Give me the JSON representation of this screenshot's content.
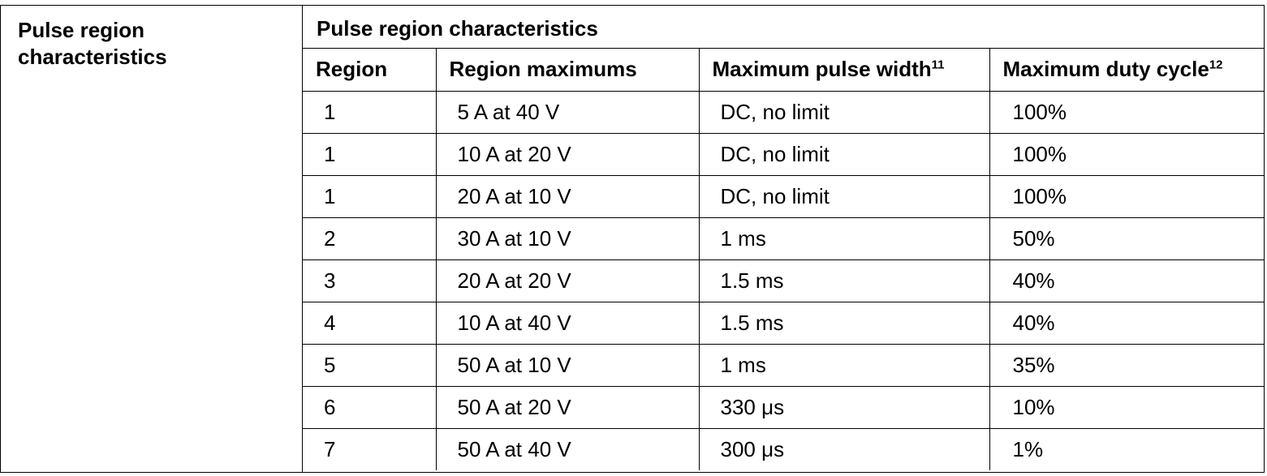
{
  "left_label": {
    "line1": "Pulse region",
    "line2": "characteristics"
  },
  "table_title": "Pulse region characteristics",
  "headers": {
    "region": "Region",
    "region_max": "Region maximums",
    "pulse_width": "Maximum pulse width",
    "pulse_width_note": "11",
    "duty_cycle": "Maximum duty cycle",
    "duty_cycle_note": "12"
  },
  "rows": [
    {
      "region": "1",
      "max": "5 A at 40 V",
      "width": "DC, no limit",
      "duty": "100%"
    },
    {
      "region": "1",
      "max": "10 A at 20 V",
      "width": "DC, no limit",
      "duty": "100%"
    },
    {
      "region": "1",
      "max": "20 A at 10 V",
      "width": "DC, no limit",
      "duty": "100%"
    },
    {
      "region": "2",
      "max": "30 A at 10 V",
      "width": "1 ms",
      "duty": "50%"
    },
    {
      "region": "3",
      "max": "20 A at 20 V",
      "width": "1.5 ms",
      "duty": "40%"
    },
    {
      "region": "4",
      "max": "10 A at 40 V",
      "width": "1.5 ms",
      "duty": "40%"
    },
    {
      "region": "5",
      "max": "50 A at 10 V",
      "width": "1 ms",
      "duty": "35%"
    },
    {
      "region": "6",
      "max": "50 A at 20 V",
      "width": "330 μs",
      "duty": "10%"
    },
    {
      "region": "7",
      "max": "50 A at 40 V",
      "width": "300 μs",
      "duty": "1%"
    }
  ]
}
